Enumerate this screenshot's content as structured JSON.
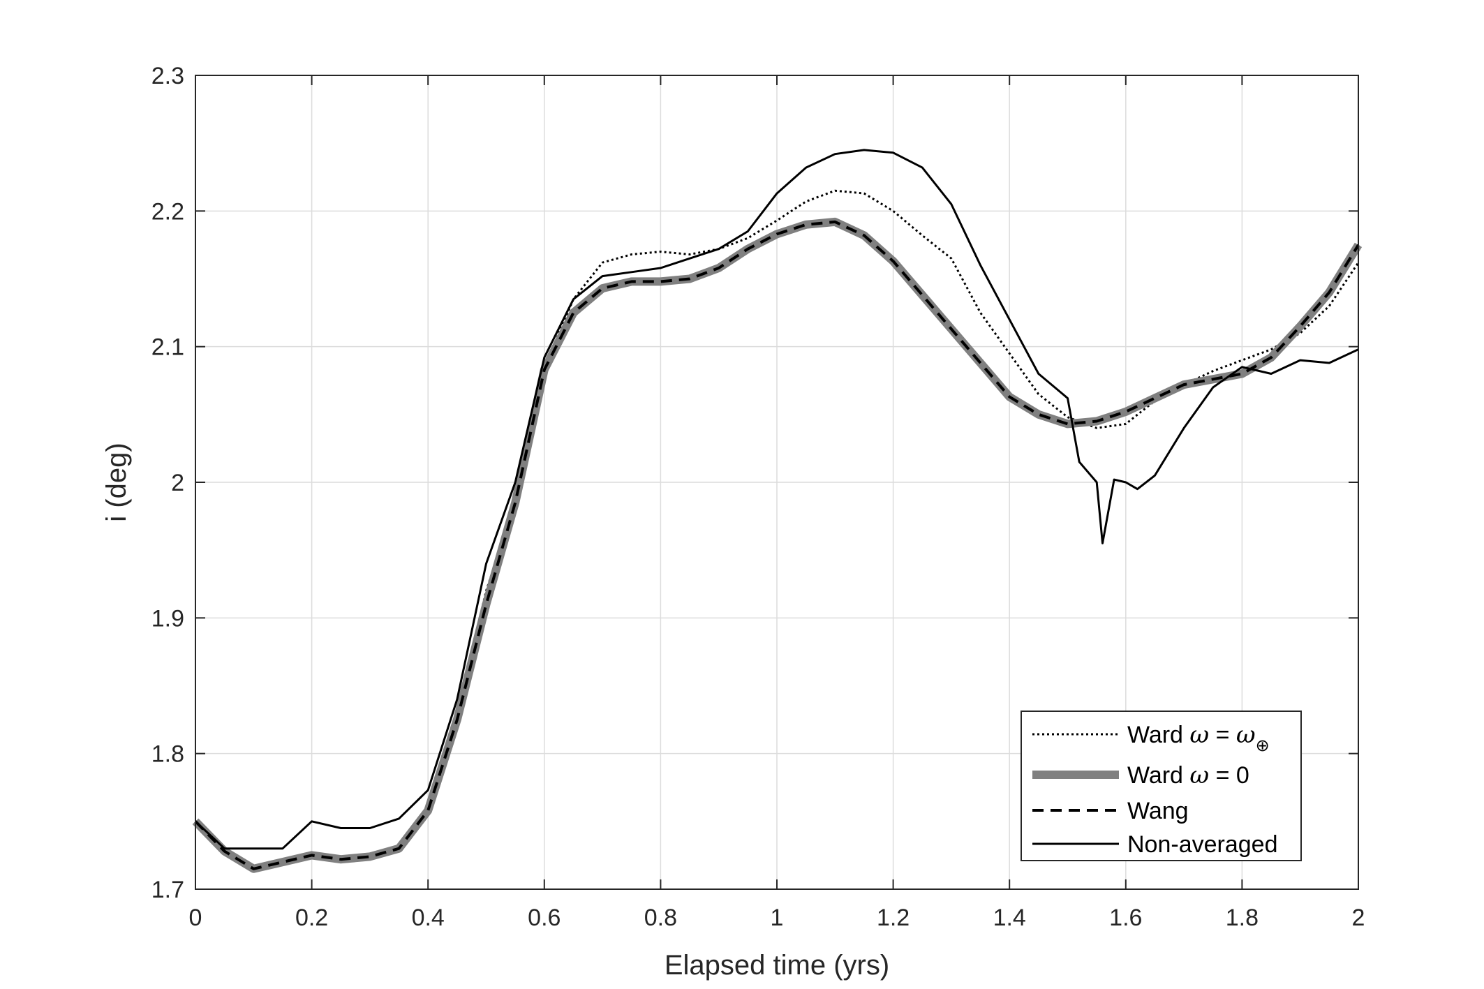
{
  "chart_data": {
    "type": "line",
    "xlabel": "Elapsed time (yrs)",
    "ylabel": "i (deg)",
    "xlim": [
      0,
      2
    ],
    "ylim": [
      1.7,
      2.3
    ],
    "xticks": [
      0,
      0.2,
      0.4,
      0.6,
      0.8,
      1,
      1.2,
      1.4,
      1.6,
      1.8,
      2
    ],
    "xtick_labels": [
      "0",
      "0.2",
      "0.4",
      "0.6",
      "0.8",
      "1",
      "1.2",
      "1.4",
      "1.6",
      "1.8",
      "2"
    ],
    "yticks": [
      1.7,
      1.8,
      1.9,
      2,
      2.1,
      2.2,
      2.3
    ],
    "ytick_labels": [
      "1.7",
      "1.8",
      "1.9",
      "2",
      "2.1",
      "2.2",
      "2.3"
    ],
    "grid": true,
    "legend_position": "bottom-right",
    "colors": {
      "axis": "#262626",
      "grid": "#dcdcdc",
      "ward_zero": "#808080",
      "black": "#000000"
    },
    "series": [
      {
        "name": "Ward ω = ω⊕",
        "legend": {
          "prefix": "Ward ",
          "var": "ω",
          "mid": " = ",
          "rhs_var": "ω",
          "rhs_sub": "⊕"
        },
        "style": "dotted",
        "x": [
          0,
          0.05,
          0.1,
          0.15,
          0.2,
          0.25,
          0.3,
          0.35,
          0.4,
          0.45,
          0.5,
          0.55,
          0.6,
          0.65,
          0.7,
          0.75,
          0.8,
          0.85,
          0.9,
          0.95,
          1.0,
          1.05,
          1.1,
          1.15,
          1.2,
          1.25,
          1.3,
          1.35,
          1.4,
          1.45,
          1.5,
          1.55,
          1.6,
          1.65,
          1.7,
          1.75,
          1.8,
          1.85,
          1.9,
          1.95,
          2.0
        ],
        "y": [
          1.75,
          1.728,
          1.715,
          1.72,
          1.725,
          1.722,
          1.724,
          1.73,
          1.762,
          1.83,
          1.92,
          1.985,
          2.085,
          2.135,
          2.162,
          2.168,
          2.17,
          2.168,
          2.172,
          2.18,
          2.193,
          2.207,
          2.215,
          2.213,
          2.2,
          2.182,
          2.165,
          2.125,
          2.095,
          2.065,
          2.048,
          2.04,
          2.043,
          2.06,
          2.072,
          2.082,
          2.09,
          2.098,
          2.11,
          2.13,
          2.162
        ]
      },
      {
        "name": "Ward ω = 0",
        "legend": {
          "prefix": "Ward ",
          "var": "ω",
          "mid": " = 0",
          "rhs_var": "",
          "rhs_sub": ""
        },
        "style": "thick-gray",
        "x": [
          0,
          0.05,
          0.1,
          0.15,
          0.2,
          0.25,
          0.3,
          0.35,
          0.4,
          0.45,
          0.5,
          0.55,
          0.6,
          0.65,
          0.7,
          0.75,
          0.8,
          0.85,
          0.9,
          0.95,
          1.0,
          1.05,
          1.1,
          1.15,
          1.2,
          1.25,
          1.3,
          1.35,
          1.4,
          1.45,
          1.5,
          1.55,
          1.6,
          1.65,
          1.7,
          1.75,
          1.8,
          1.85,
          1.9,
          1.95,
          2.0
        ],
        "y": [
          1.75,
          1.728,
          1.715,
          1.72,
          1.725,
          1.722,
          1.724,
          1.73,
          1.758,
          1.825,
          1.91,
          1.985,
          2.083,
          2.125,
          2.143,
          2.148,
          2.148,
          2.15,
          2.158,
          2.172,
          2.183,
          2.19,
          2.192,
          2.182,
          2.163,
          2.138,
          2.113,
          2.088,
          2.063,
          2.05,
          2.043,
          2.045,
          2.052,
          2.062,
          2.072,
          2.076,
          2.08,
          2.092,
          2.115,
          2.14,
          2.175
        ]
      },
      {
        "name": "Wang",
        "legend": {
          "prefix": "Wang",
          "var": "",
          "mid": "",
          "rhs_var": "",
          "rhs_sub": ""
        },
        "style": "dashed",
        "x": [
          0,
          0.05,
          0.1,
          0.15,
          0.2,
          0.25,
          0.3,
          0.35,
          0.4,
          0.45,
          0.5,
          0.55,
          0.6,
          0.65,
          0.7,
          0.75,
          0.8,
          0.85,
          0.9,
          0.95,
          1.0,
          1.05,
          1.1,
          1.15,
          1.2,
          1.25,
          1.3,
          1.35,
          1.4,
          1.45,
          1.5,
          1.55,
          1.6,
          1.65,
          1.7,
          1.75,
          1.8,
          1.85,
          1.9,
          1.95,
          2.0
        ],
        "y": [
          1.75,
          1.728,
          1.715,
          1.72,
          1.725,
          1.722,
          1.724,
          1.73,
          1.758,
          1.825,
          1.91,
          1.985,
          2.083,
          2.125,
          2.143,
          2.148,
          2.148,
          2.15,
          2.158,
          2.172,
          2.183,
          2.19,
          2.192,
          2.182,
          2.163,
          2.138,
          2.113,
          2.088,
          2.063,
          2.05,
          2.043,
          2.045,
          2.052,
          2.062,
          2.072,
          2.076,
          2.08,
          2.092,
          2.115,
          2.14,
          2.175
        ]
      },
      {
        "name": "Non-averaged",
        "legend": {
          "prefix": "Non-averaged",
          "var": "",
          "mid": "",
          "rhs_var": "",
          "rhs_sub": ""
        },
        "style": "solid",
        "x": [
          0,
          0.05,
          0.1,
          0.15,
          0.2,
          0.25,
          0.3,
          0.35,
          0.4,
          0.45,
          0.5,
          0.55,
          0.6,
          0.65,
          0.7,
          0.75,
          0.8,
          0.85,
          0.9,
          0.95,
          1.0,
          1.05,
          1.1,
          1.15,
          1.2,
          1.25,
          1.3,
          1.35,
          1.4,
          1.45,
          1.5,
          1.52,
          1.55,
          1.56,
          1.58,
          1.6,
          1.62,
          1.65,
          1.7,
          1.75,
          1.8,
          1.85,
          1.9,
          1.95,
          2.0
        ],
        "y": [
          1.75,
          1.73,
          1.73,
          1.73,
          1.75,
          1.745,
          1.745,
          1.752,
          1.773,
          1.84,
          1.94,
          2.0,
          2.092,
          2.135,
          2.152,
          2.155,
          2.158,
          2.165,
          2.172,
          2.185,
          2.213,
          2.232,
          2.242,
          2.245,
          2.243,
          2.232,
          2.205,
          2.16,
          2.12,
          2.08,
          2.062,
          2.015,
          2.0,
          1.955,
          2.002,
          2.0,
          1.995,
          2.005,
          2.04,
          2.07,
          2.085,
          2.08,
          2.09,
          2.088,
          2.098
        ]
      }
    ]
  }
}
